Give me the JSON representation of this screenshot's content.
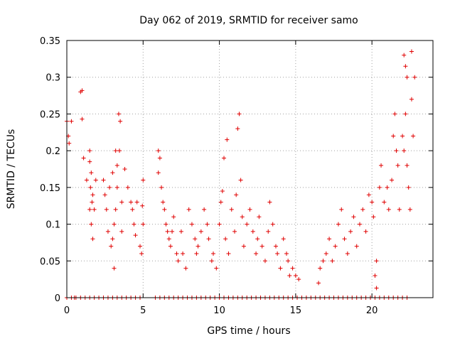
{
  "chart_data": {
    "type": "scatter",
    "title": "Day 062 of 2019, SRMTID for receiver samo",
    "xlabel": "GPS time / hours",
    "ylabel": "SRMTID / TECUs",
    "xlim": [
      0,
      24
    ],
    "ylim": [
      0,
      0.35
    ],
    "xticks": [
      0,
      5,
      10,
      15,
      20
    ],
    "xtick_labels": [
      "0",
      "5",
      "10",
      "15",
      "20"
    ],
    "yticks": [
      0,
      0.05,
      0.1,
      0.15,
      0.2,
      0.25,
      0.3,
      0.35
    ],
    "ytick_labels": [
      "0",
      "0.05",
      "0.1",
      "0.15",
      "0.2",
      "0.25",
      "0.3",
      "0.35"
    ],
    "grid": true,
    "marker": "+",
    "series": [
      {
        "name": "SRMTID",
        "color": "#e00000",
        "points": [
          [
            0.0,
            0.24
          ],
          [
            0.1,
            0.22
          ],
          [
            0.15,
            0.21
          ],
          [
            0.3,
            0.24
          ],
          [
            0.5,
            0.0
          ],
          [
            0.9,
            0.28
          ],
          [
            1.0,
            0.282
          ],
          [
            1.0,
            0.243
          ],
          [
            1.1,
            0.19
          ],
          [
            1.3,
            0.16
          ],
          [
            1.5,
            0.2
          ],
          [
            1.5,
            0.185
          ],
          [
            1.6,
            0.17
          ],
          [
            1.55,
            0.15
          ],
          [
            1.7,
            0.14
          ],
          [
            1.65,
            0.13
          ],
          [
            1.8,
            0.12
          ],
          [
            1.6,
            0.1
          ],
          [
            1.7,
            0.08
          ],
          [
            1.5,
            0.12
          ],
          [
            1.9,
            0.16
          ],
          [
            2.4,
            0.16
          ],
          [
            2.5,
            0.14
          ],
          [
            2.6,
            0.12
          ],
          [
            2.7,
            0.09
          ],
          [
            2.8,
            0.15
          ],
          [
            3.0,
            0.17
          ],
          [
            3.2,
            0.2
          ],
          [
            3.3,
            0.18
          ],
          [
            3.4,
            0.25
          ],
          [
            3.5,
            0.24
          ],
          [
            3.45,
            0.2
          ],
          [
            3.3,
            0.15
          ],
          [
            3.2,
            0.12
          ],
          [
            3.1,
            0.1
          ],
          [
            3.0,
            0.08
          ],
          [
            2.9,
            0.07
          ],
          [
            3.1,
            0.04
          ],
          [
            3.6,
            0.13
          ],
          [
            3.8,
            0.175
          ],
          [
            3.6,
            0.09
          ],
          [
            4.0,
            0.15
          ],
          [
            4.2,
            0.13
          ],
          [
            4.3,
            0.12
          ],
          [
            4.4,
            0.1
          ],
          [
            4.5,
            0.085
          ],
          [
            4.6,
            0.13
          ],
          [
            4.8,
            0.07
          ],
          [
            4.9,
            0.06
          ],
          [
            5.0,
            0.1
          ],
          [
            5.0,
            0.16
          ],
          [
            4.95,
            0.125
          ],
          [
            6.0,
            0.2
          ],
          [
            6.1,
            0.19
          ],
          [
            6.0,
            0.17
          ],
          [
            6.2,
            0.15
          ],
          [
            6.3,
            0.13
          ],
          [
            6.4,
            0.12
          ],
          [
            6.5,
            0.1
          ],
          [
            6.6,
            0.09
          ],
          [
            6.7,
            0.08
          ],
          [
            6.8,
            0.07
          ],
          [
            6.9,
            0.09
          ],
          [
            7.0,
            0.11
          ],
          [
            7.2,
            0.06
          ],
          [
            7.3,
            0.05
          ],
          [
            7.5,
            0.09
          ],
          [
            7.6,
            0.06
          ],
          [
            7.8,
            0.04
          ],
          [
            8.0,
            0.12
          ],
          [
            8.2,
            0.1
          ],
          [
            8.4,
            0.08
          ],
          [
            8.5,
            0.06
          ],
          [
            8.6,
            0.07
          ],
          [
            8.8,
            0.09
          ],
          [
            9.0,
            0.12
          ],
          [
            9.2,
            0.1
          ],
          [
            9.3,
            0.08
          ],
          [
            9.5,
            0.05
          ],
          [
            9.6,
            0.06
          ],
          [
            9.8,
            0.04
          ],
          [
            10.0,
            0.1
          ],
          [
            10.1,
            0.13
          ],
          [
            10.2,
            0.145
          ],
          [
            10.3,
            0.19
          ],
          [
            10.5,
            0.215
          ],
          [
            10.4,
            0.08
          ],
          [
            10.6,
            0.06
          ],
          [
            10.8,
            0.12
          ],
          [
            11.0,
            0.09
          ],
          [
            11.1,
            0.14
          ],
          [
            11.2,
            0.23
          ],
          [
            11.3,
            0.25
          ],
          [
            11.4,
            0.16
          ],
          [
            11.5,
            0.11
          ],
          [
            11.6,
            0.07
          ],
          [
            11.8,
            0.1
          ],
          [
            12.0,
            0.12
          ],
          [
            12.2,
            0.09
          ],
          [
            12.4,
            0.06
          ],
          [
            12.5,
            0.08
          ],
          [
            12.6,
            0.11
          ],
          [
            12.8,
            0.07
          ],
          [
            13.0,
            0.05
          ],
          [
            13.2,
            0.09
          ],
          [
            13.3,
            0.13
          ],
          [
            13.5,
            0.1
          ],
          [
            13.7,
            0.07
          ],
          [
            13.8,
            0.06
          ],
          [
            14.0,
            0.04
          ],
          [
            14.2,
            0.08
          ],
          [
            14.4,
            0.06
          ],
          [
            14.5,
            0.05
          ],
          [
            14.6,
            0.03
          ],
          [
            14.8,
            0.04
          ],
          [
            15.0,
            0.03
          ],
          [
            15.2,
            0.025
          ],
          [
            16.5,
            0.02
          ],
          [
            16.6,
            0.04
          ],
          [
            16.8,
            0.05
          ],
          [
            17.0,
            0.06
          ],
          [
            17.2,
            0.08
          ],
          [
            17.4,
            0.05
          ],
          [
            17.6,
            0.07
          ],
          [
            17.8,
            0.1
          ],
          [
            18.0,
            0.12
          ],
          [
            18.2,
            0.08
          ],
          [
            18.4,
            0.06
          ],
          [
            18.6,
            0.09
          ],
          [
            18.8,
            0.11
          ],
          [
            19.0,
            0.07
          ],
          [
            19.2,
            0.1
          ],
          [
            19.4,
            0.12
          ],
          [
            19.6,
            0.09
          ],
          [
            19.8,
            0.14
          ],
          [
            20.0,
            0.13
          ],
          [
            20.1,
            0.11
          ],
          [
            20.2,
            0.03
          ],
          [
            20.3,
            0.05
          ],
          [
            20.3,
            0.013
          ],
          [
            20.5,
            0.15
          ],
          [
            20.6,
            0.18
          ],
          [
            20.8,
            0.13
          ],
          [
            21.0,
            0.15
          ],
          [
            21.1,
            0.12
          ],
          [
            21.3,
            0.16
          ],
          [
            21.4,
            0.22
          ],
          [
            21.5,
            0.25
          ],
          [
            21.6,
            0.2
          ],
          [
            21.7,
            0.18
          ],
          [
            21.8,
            0.12
          ],
          [
            22.0,
            0.22
          ],
          [
            22.1,
            0.2
          ],
          [
            22.2,
            0.25
          ],
          [
            22.3,
            0.18
          ],
          [
            22.4,
            0.15
          ],
          [
            22.5,
            0.12
          ],
          [
            22.1,
            0.33
          ],
          [
            22.2,
            0.315
          ],
          [
            22.3,
            0.3
          ],
          [
            22.6,
            0.335
          ],
          [
            22.6,
            0.27
          ],
          [
            22.7,
            0.22
          ],
          [
            22.8,
            0.3
          ]
        ],
        "zero_rug_x": [
          0.0,
          0.3,
          0.6,
          0.9,
          1.2,
          1.5,
          1.8,
          2.1,
          2.4,
          2.7,
          3.0,
          3.3,
          3.6,
          3.9,
          4.2,
          4.5,
          4.8,
          5.8,
          6.1,
          6.4,
          6.7,
          7.0,
          7.3,
          7.6,
          7.9,
          8.2,
          8.5,
          8.8,
          9.1,
          9.4,
          9.7,
          10.0,
          10.3,
          10.6,
          10.9,
          11.2,
          11.5,
          11.8,
          12.1,
          12.4,
          12.7,
          13.0,
          13.3,
          13.6,
          13.9,
          14.2,
          14.5,
          14.8,
          15.1,
          15.4,
          15.7,
          16.0,
          16.3,
          16.6,
          16.9,
          17.2,
          17.5,
          17.8,
          18.1,
          18.4,
          18.7,
          19.0,
          19.3,
          19.6,
          19.9,
          20.2,
          20.5,
          20.8,
          21.1,
          21.4,
          21.7,
          22.0,
          22.3
        ]
      }
    ]
  }
}
